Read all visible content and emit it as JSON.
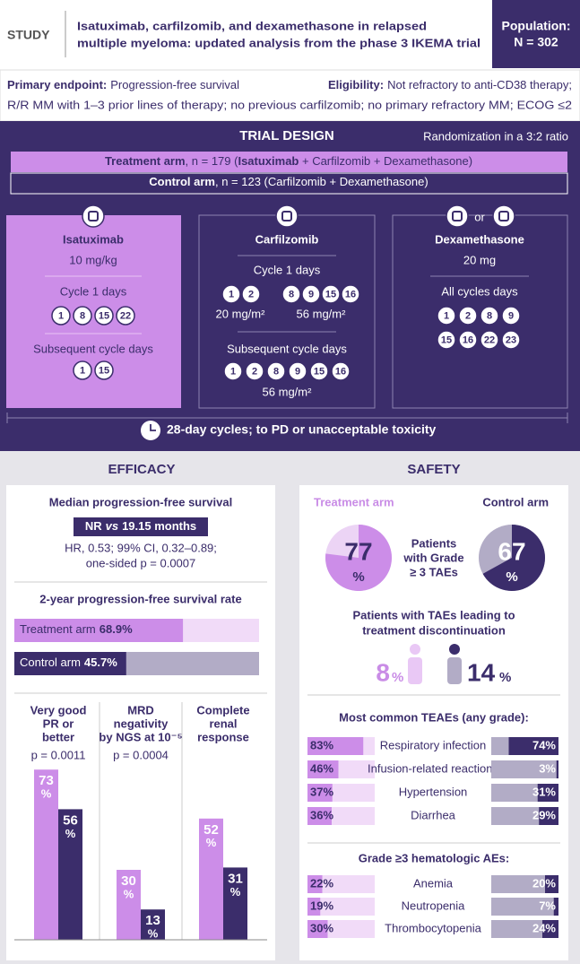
{
  "header": {
    "study_label": "STUDY",
    "title_lines": [
      "Isatuximab, carfilzomib, and dexamethasone in relapsed",
      "multiple myeloma: updated analysis from the phase 3 IKEMA trial"
    ],
    "population_label": "Population:",
    "population": "N = 302"
  },
  "criteria": {
    "primary_label": "Primary endpoint:",
    "primary": "Progression-free survival",
    "eligibility_label": "Eligibility:",
    "eligibility_lines": [
      "Not refractory to anti-CD38 therapy;",
      "R/R MM with 1–3 prior lines of therapy; no previous carfilzomib; no primary refractory MM; ECOG ≤2"
    ]
  },
  "trial_design": {
    "title": "TRIAL DESIGN",
    "randomization": "Randomization in a 3:2 ratio",
    "treatment_arm": [
      "Treatment arm",
      ", n = 179 (",
      "Isatuximab",
      " + Carfilzomib + Dexamethasone)"
    ],
    "control_arm": [
      "Control arm",
      ", n = 123 (Carfilzomib + Dexamethasone)"
    ],
    "isatuximab": {
      "name": "Isatuximab",
      "dose": "10 mg/kg",
      "cycle1_label": "Cycle 1 days",
      "cycle1_days": [
        1,
        8,
        15,
        22
      ],
      "subsequent_label": "Subsequent cycle days",
      "subsequent_days": [
        1,
        15
      ]
    },
    "carfilzomib": {
      "name": "Carfilzomib",
      "cycle1_label": "Cycle 1 days",
      "cycle1_groups": [
        {
          "days": [
            1,
            2
          ],
          "dose": "20 mg/m²"
        },
        {
          "days": [
            8,
            9,
            15,
            16
          ],
          "dose": "56 mg/m²"
        }
      ],
      "subsequent_label": "Subsequent cycle days",
      "subsequent_days": [
        1,
        2,
        8,
        9,
        15,
        16
      ],
      "subsequent_dose": "56 mg/m²"
    },
    "dexamethasone": {
      "or": "or",
      "name": "Dexamethasone",
      "dose": "20 mg",
      "days_label": "All cycles days",
      "days": [
        1,
        2,
        8,
        9,
        15,
        16,
        22,
        23
      ]
    },
    "cycle_note": "28-day cycles; to PD or unacceptable toxicity"
  },
  "efficacy": {
    "title": "EFFICACY",
    "pfs_title": "Median progression-free survival",
    "pfs_parts": [
      "NR",
      "vs",
      "19.15 months"
    ],
    "hr_lines": [
      "HR, 0.53; 99% CI, 0.32–0.89;",
      "one-sided p = 0.0007"
    ],
    "pfs2": {
      "title": "2-year progression-free survival rate",
      "bars": [
        {
          "label": "Treatment arm",
          "value": 68.9,
          "value_label": "68.9%"
        },
        {
          "label": "Control arm",
          "value": 45.7,
          "value_label": "45.7%"
        }
      ]
    },
    "endpoints": {
      "unit": "%",
      "groups": [
        {
          "title_lines": [
            "Very good",
            "PR or",
            "better"
          ],
          "p": "p = 0.0011",
          "values": [
            73,
            56
          ]
        },
        {
          "title_lines": [
            "MRD",
            "negativity",
            "by NGS at 10⁻⁵"
          ],
          "p": "p = 0.0004",
          "values": [
            30,
            13
          ]
        },
        {
          "title_lines": [
            "Complete",
            "renal",
            "response"
          ],
          "values": [
            52,
            31
          ]
        }
      ]
    }
  },
  "safety": {
    "title": "SAFETY",
    "arms": [
      "Treatment arm",
      "Control arm"
    ],
    "grade3": {
      "label_lines": [
        "Patients",
        "with Grade",
        "≥ 3 TAEs"
      ],
      "values": [
        77,
        67
      ],
      "unit": "%"
    },
    "discontinuation": {
      "title_lines": [
        "Patients with TAEs leading to",
        "treatment discontinuation"
      ],
      "values": [
        8,
        14
      ],
      "unit": "%"
    },
    "common": {
      "title": "Most common TEAEs (any grade):",
      "rows": [
        {
          "label": "Respiratory infection",
          "values": [
            83,
            74
          ],
          "value_labels": [
            "83%",
            "74%"
          ]
        },
        {
          "label": "Infusion-related reactions",
          "values": [
            46,
            3
          ],
          "value_labels": [
            "46%",
            "3%"
          ]
        },
        {
          "label": "Hypertension",
          "values": [
            37,
            31
          ],
          "value_labels": [
            "37%",
            "31%"
          ]
        },
        {
          "label": "Diarrhea",
          "values": [
            36,
            29
          ],
          "value_labels": [
            "36%",
            "29%"
          ]
        }
      ]
    },
    "hematologic": {
      "title": "Grade ≥3 hematologic AEs:",
      "rows": [
        {
          "label": "Anemia",
          "values": [
            22,
            20
          ],
          "value_labels": [
            "22%",
            "20%"
          ]
        },
        {
          "label": "Neutropenia",
          "values": [
            19,
            7
          ],
          "value_labels": [
            "19%",
            "7%"
          ]
        },
        {
          "label": "Thrombocytopenia",
          "values": [
            30,
            24
          ],
          "value_labels": [
            "30%",
            "24%"
          ]
        }
      ]
    }
  }
}
